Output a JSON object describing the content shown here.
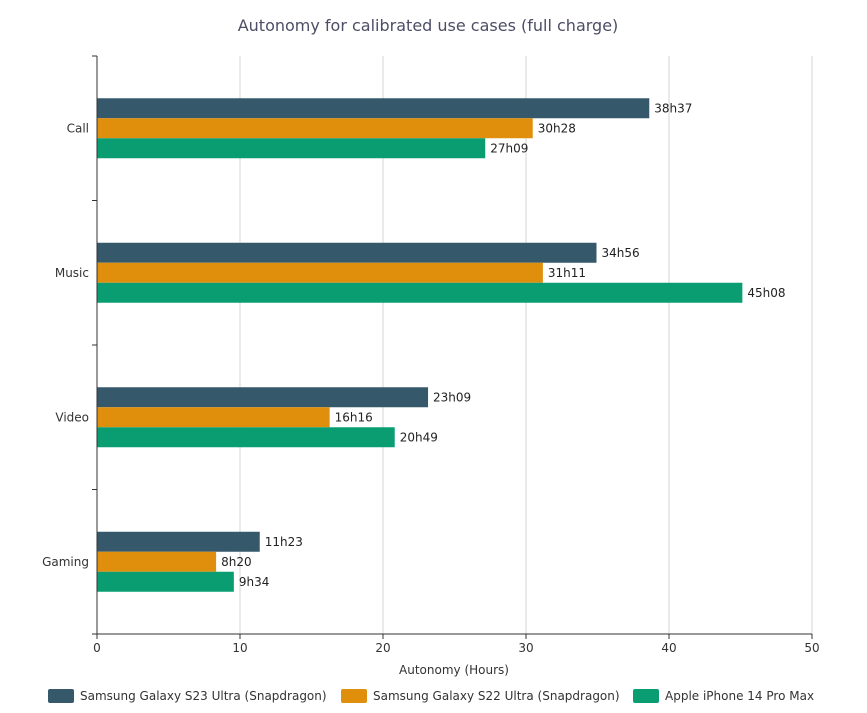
{
  "chart_data": {
    "type": "bar",
    "orientation": "horizontal",
    "title": "Autonomy for calibrated use cases (full charge)",
    "xlabel": "Autonomy (Hours)",
    "ylabel": "",
    "xlim": [
      0,
      50
    ],
    "xticks": [
      0,
      10,
      20,
      30,
      40,
      50
    ],
    "grid": true,
    "legend_position": "bottom",
    "categories": [
      "Call",
      "Music",
      "Video",
      "Gaming"
    ],
    "series": [
      {
        "name": "Samsung Galaxy S23 Ultra (Snapdragon)",
        "color": "#35596b",
        "values": [
          38.62,
          34.93,
          23.15,
          11.38
        ],
        "labels": [
          "38h37",
          "34h56",
          "23h09",
          "11h23"
        ]
      },
      {
        "name": "Samsung Galaxy S22 Ultra (Snapdragon)",
        "color": "#df8f0b",
        "values": [
          30.47,
          31.18,
          16.27,
          8.33
        ],
        "labels": [
          "30h28",
          "31h11",
          "16h16",
          "8h20"
        ]
      },
      {
        "name": "Apple iPhone 14 Pro Max",
        "color": "#0a9d72",
        "values": [
          27.15,
          45.13,
          20.82,
          9.57
        ],
        "labels": [
          "27h09",
          "45h08",
          "20h49",
          "9h34"
        ]
      }
    ]
  }
}
